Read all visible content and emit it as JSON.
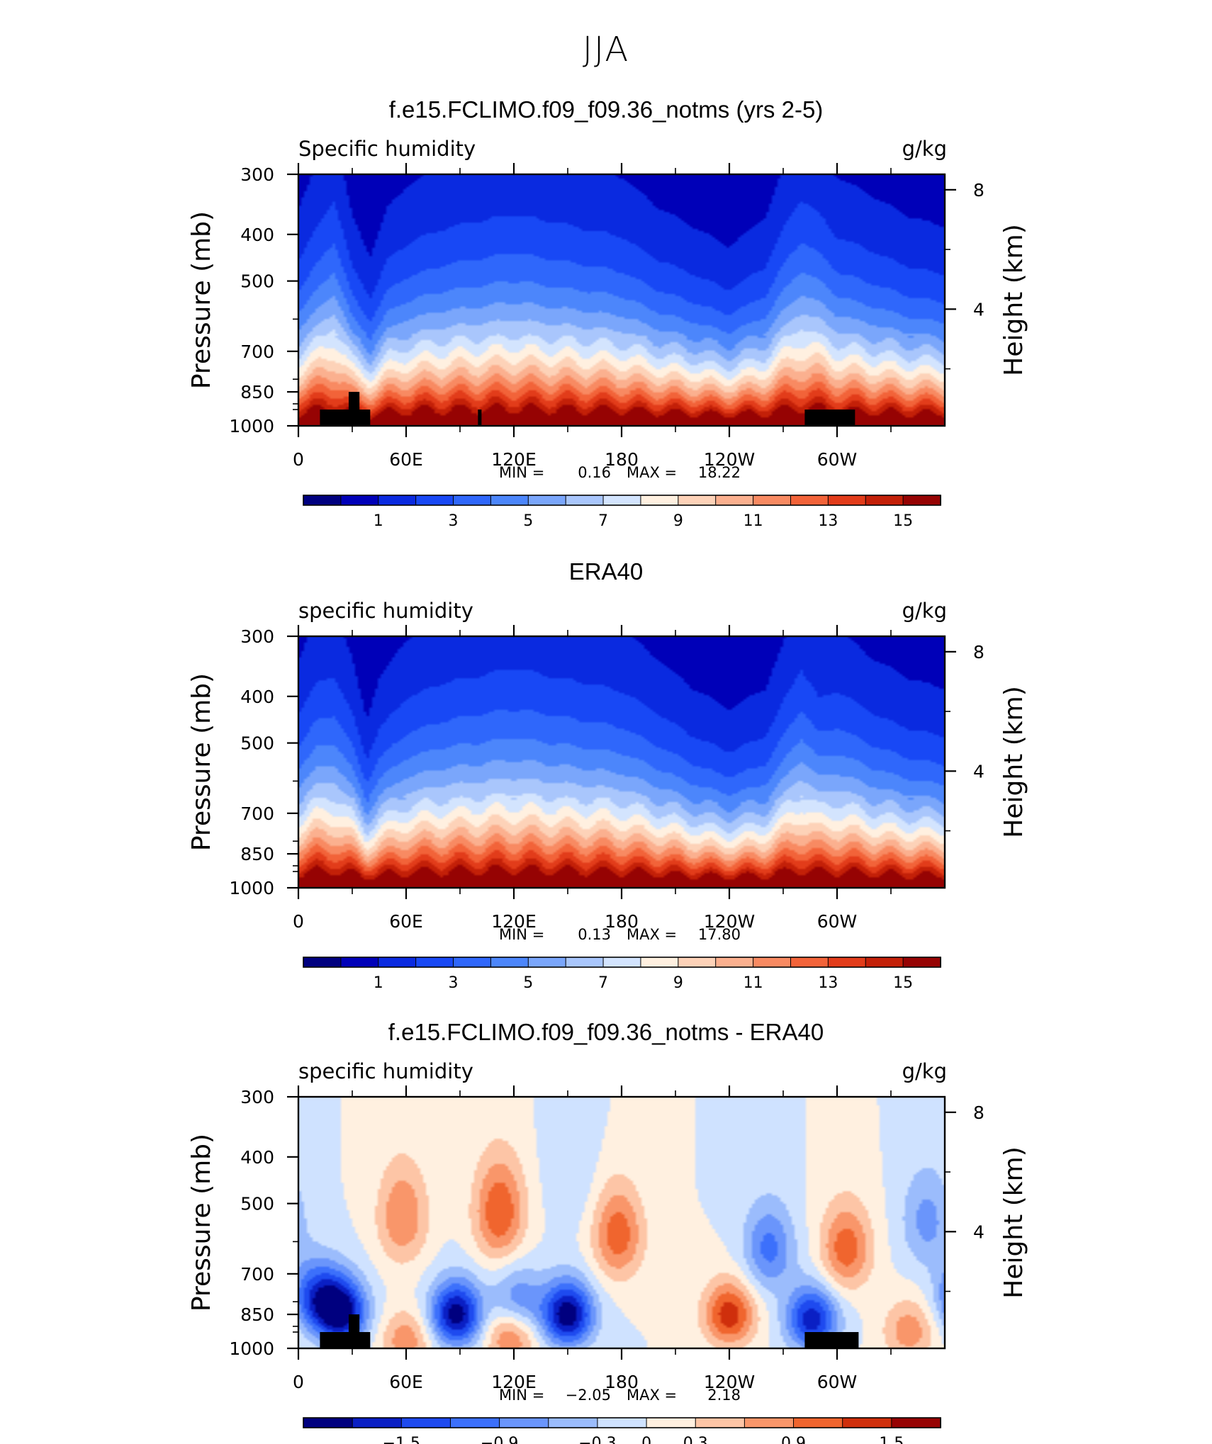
{
  "figure": {
    "main_title": "JJA",
    "panels": [
      {
        "title": "f.e15.FCLIMO.f09_f09.36_notms (yrs 2-5)",
        "left_label": "Specific humidity",
        "right_label": "g/kg",
        "min_label": "MIN =",
        "min_value": "0.16",
        "max_label": "MAX =",
        "max_value": "18.22"
      },
      {
        "title": "ERA40",
        "left_label": "specific humidity",
        "right_label": "g/kg",
        "min_label": "MIN =",
        "min_value": "0.13",
        "max_label": "MAX =",
        "max_value": "17.80"
      },
      {
        "title": "f.e15.FCLIMO.f09_f09.36_notms - ERA40",
        "left_label": "specific humidity",
        "right_label": "g/kg",
        "min_label": "MIN =",
        "min_value": "−2.05",
        "max_label": "MAX =",
        "max_value": "2.18"
      }
    ]
  },
  "chart_data": [
    {
      "type": "heatmap",
      "title": "f.e15.FCLIMO.f09_f09.36_notms (yrs 2-5)",
      "field": "Specific humidity",
      "units": "g/kg",
      "ylabel": "Pressure (mb)",
      "y2label": "Height (km)",
      "x_ticks": [
        "0",
        "60E",
        "120E",
        "180",
        "120W",
        "60W"
      ],
      "x_tick_lon": [
        0,
        60,
        120,
        180,
        240,
        300
      ],
      "xlim": [
        0,
        360
      ],
      "y_ticks": [
        "300",
        "400",
        "500",
        "700",
        "850",
        "1000"
      ],
      "y_tick_values": [
        300,
        400,
        500,
        700,
        850,
        1000
      ],
      "ylim": [
        1000,
        300
      ],
      "y2_ticks": [
        "8",
        "4"
      ],
      "y2_tick_values": [
        8,
        4
      ],
      "min": 0.16,
      "max": 18.22,
      "colorbar_levels": [
        0,
        1,
        2,
        3,
        4,
        5,
        6,
        7,
        8,
        9,
        10,
        11,
        12,
        13,
        14,
        15,
        16
      ],
      "colorbar_labels": [
        "1",
        "3",
        "5",
        "7",
        "9",
        "11",
        "13",
        "15"
      ],
      "colorbar_label_levels": [
        1,
        3,
        5,
        7,
        9,
        11,
        13,
        15
      ],
      "lon_profile": {
        "lon": [
          0,
          10,
          20,
          30,
          40,
          50,
          60,
          80,
          100,
          120,
          140,
          160,
          180,
          200,
          220,
          240,
          260,
          270,
          280,
          290,
          300,
          320,
          340,
          360
        ],
        "depth": [
          1.1,
          1.3,
          1.5,
          1.05,
          0.85,
          1.1,
          1.2,
          1.3,
          1.35,
          1.4,
          1.35,
          1.3,
          1.25,
          1.1,
          1.0,
          0.9,
          1.05,
          1.3,
          1.5,
          1.4,
          1.25,
          1.15,
          1.05,
          1.0
        ]
      },
      "topography_masks": [
        {
          "lon_range": [
            12,
            40
          ],
          "top_pressure": 925
        },
        {
          "lon_range": [
            28,
            34
          ],
          "top_pressure": 850
        },
        {
          "lon_range": [
            100,
            102
          ],
          "top_pressure": 925
        },
        {
          "lon_range": [
            282,
            310
          ],
          "top_pressure": 925
        }
      ]
    },
    {
      "type": "heatmap",
      "title": "ERA40",
      "field": "specific humidity",
      "units": "g/kg",
      "ylabel": "Pressure (mb)",
      "y2label": "Height (km)",
      "x_ticks": [
        "0",
        "60E",
        "120E",
        "180",
        "120W",
        "60W"
      ],
      "x_tick_lon": [
        0,
        60,
        120,
        180,
        240,
        300
      ],
      "xlim": [
        0,
        360
      ],
      "y_ticks": [
        "300",
        "400",
        "500",
        "700",
        "850",
        "1000"
      ],
      "y_tick_values": [
        300,
        400,
        500,
        700,
        850,
        1000
      ],
      "ylim": [
        1000,
        300
      ],
      "y2_ticks": [
        "8",
        "4"
      ],
      "y2_tick_values": [
        8,
        4
      ],
      "min": 0.13,
      "max": 17.8,
      "colorbar_levels": [
        0,
        1,
        2,
        3,
        4,
        5,
        6,
        7,
        8,
        9,
        10,
        11,
        12,
        13,
        14,
        15,
        16
      ],
      "colorbar_labels": [
        "1",
        "3",
        "5",
        "7",
        "9",
        "11",
        "13",
        "15"
      ],
      "colorbar_label_levels": [
        1,
        3,
        5,
        7,
        9,
        11,
        13,
        15
      ],
      "lon_profile": {
        "lon": [
          0,
          10,
          20,
          30,
          38,
          45,
          60,
          80,
          100,
          120,
          140,
          160,
          180,
          200,
          220,
          240,
          260,
          280,
          290,
          300,
          320,
          340,
          360
        ],
        "depth": [
          1.15,
          1.35,
          1.4,
          1.15,
          0.85,
          1.05,
          1.25,
          1.35,
          1.4,
          1.45,
          1.4,
          1.35,
          1.3,
          1.15,
          1.0,
          0.9,
          1.0,
          1.45,
          1.25,
          1.3,
          1.15,
          1.05,
          1.0
        ]
      },
      "topography_masks": []
    },
    {
      "type": "heatmap",
      "title": "f.e15.FCLIMO.f09_f09.36_notms - ERA40",
      "field": "specific humidity",
      "units": "g/kg",
      "ylabel": "Pressure (mb)",
      "y2label": "Height (km)",
      "x_ticks": [
        "0",
        "60E",
        "120E",
        "180",
        "120W",
        "60W"
      ],
      "x_tick_lon": [
        0,
        60,
        120,
        180,
        240,
        300
      ],
      "xlim": [
        0,
        360
      ],
      "y_ticks": [
        "300",
        "400",
        "500",
        "700",
        "850",
        "1000"
      ],
      "y_tick_values": [
        300,
        400,
        500,
        700,
        850,
        1000
      ],
      "ylim": [
        1000,
        300
      ],
      "y2_ticks": [
        "8",
        "4"
      ],
      "y2_tick_values": [
        8,
        4
      ],
      "min": -2.05,
      "max": 2.18,
      "colorbar_levels": [
        -1.8,
        -1.5,
        -1.2,
        -0.9,
        -0.6,
        -0.3,
        0,
        0.3,
        0.6,
        0.9,
        1.2,
        1.5,
        1.8
      ],
      "colorbar_labels": [
        "−1.5",
        "−0.9",
        "−0.3",
        "0",
        "0.3",
        "0.9",
        "1.5"
      ],
      "colorbar_label_levels": [
        -1.5,
        -0.9,
        -0.3,
        0,
        0.3,
        0.9,
        1.5
      ],
      "anomaly_centers": [
        {
          "lon": 10,
          "p": 780,
          "value": -1.3
        },
        {
          "lon": 24,
          "p": 840,
          "value": -2.0
        },
        {
          "lon": 58,
          "p": 530,
          "value": 0.9
        },
        {
          "lon": 60,
          "p": 960,
          "value": 0.8
        },
        {
          "lon": 88,
          "p": 850,
          "value": -2.0
        },
        {
          "lon": 112,
          "p": 520,
          "value": 1.2
        },
        {
          "lon": 118,
          "p": 940,
          "value": 1.0
        },
        {
          "lon": 122,
          "p": 800,
          "value": -0.9
        },
        {
          "lon": 150,
          "p": 850,
          "value": -2.05
        },
        {
          "lon": 178,
          "p": 580,
          "value": 1.1
        },
        {
          "lon": 152,
          "p": 420,
          "value": -0.3
        },
        {
          "lon": 240,
          "p": 850,
          "value": 1.4
        },
        {
          "lon": 262,
          "p": 620,
          "value": -1.0
        },
        {
          "lon": 286,
          "p": 870,
          "value": -1.7
        },
        {
          "lon": 305,
          "p": 620,
          "value": 1.1
        },
        {
          "lon": 340,
          "p": 920,
          "value": 0.8
        },
        {
          "lon": 350,
          "p": 540,
          "value": -0.7
        }
      ],
      "topography_masks": [
        {
          "lon_range": [
            12,
            40
          ],
          "top_pressure": 925
        },
        {
          "lon_range": [
            28,
            34
          ],
          "top_pressure": 850
        },
        {
          "lon_range": [
            282,
            312
          ],
          "top_pressure": 925
        }
      ]
    }
  ],
  "colors": {
    "abs_palette": [
      "#00007f",
      "#0000b8",
      "#0a2ae0",
      "#1848f5",
      "#2f67fb",
      "#4c86fb",
      "#7aa6fb",
      "#a9c6fc",
      "#d3e4fe",
      "#fff0e0",
      "#fdd2b8",
      "#fbb08f",
      "#f88a62",
      "#f26339",
      "#e23c1a",
      "#c32008",
      "#960303"
    ],
    "diff_palette": [
      "#00007f",
      "#0a1fc4",
      "#1e4aef",
      "#3c70fb",
      "#6a95fb",
      "#9bbcfc",
      "#cfe2ff",
      "#fff0e0",
      "#fdc5a6",
      "#f9966a",
      "#f0652e",
      "#cf2f0c",
      "#970303"
    ],
    "topography": "#000000"
  }
}
